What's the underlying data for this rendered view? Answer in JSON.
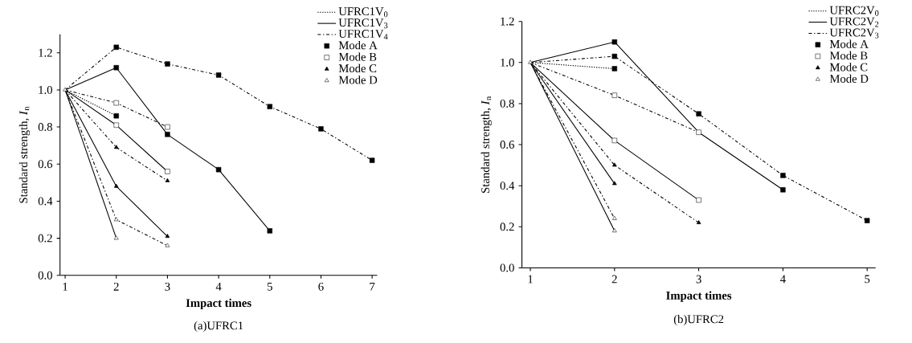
{
  "chart_data": [
    {
      "type": "line",
      "title": "(a)UFRC1",
      "xlabel": "Impact times",
      "ylabel": "Standard strength, *I*$_{n}$",
      "xlim": [
        0.9,
        7.1
      ],
      "ylim": [
        0,
        1.3
      ],
      "xticks": [
        1,
        2,
        3,
        4,
        5,
        6,
        7
      ],
      "yticks": [
        {
          "value": 0,
          "label": "0.0"
        },
        {
          "value": 0.2,
          "label": "0.2"
        },
        {
          "value": 0.4,
          "label": "0.4"
        },
        {
          "value": 0.6,
          "label": "0.6"
        },
        {
          "value": 0.8,
          "label": "0.8"
        },
        {
          "value": 1.0,
          "label": "1.0"
        },
        {
          "value": 1.2,
          "label": "1.2"
        }
      ],
      "legend": "top right",
      "grid": false,
      "series": [
        {
          "name": "UFRC1V$_{0}$",
          "color": "#000000",
          "line_style": "dotted",
          "x": [
            1,
            2
          ],
          "values": [
            1.0,
            0.86
          ]
        },
        {
          "name": "UFRC1V$_{3}$",
          "color": "#000000",
          "line_style": "solid",
          "x": [
            1,
            2,
            3,
            4,
            5
          ],
          "values": [
            1.0,
            1.12,
            0.76,
            0.57,
            0.24
          ]
        },
        {
          "name": "UFRC1V$_{4}$",
          "color": "#000000",
          "line_style": "dashed",
          "x": [
            1,
            2,
            3,
            4,
            5,
            6,
            7
          ],
          "values": [
            1.0,
            1.23,
            1.14,
            1.08,
            0.91,
            0.79,
            0.62
          ]
        },
        {
          "color": "#000000",
          "line_style": "dashed",
          "x": [
            1,
            2,
            3
          ],
          "values": [
            1.0,
            0.93,
            0.8
          ]
        },
        {
          "color": "#000000",
          "line_style": "solid",
          "x": [
            1,
            2,
            3
          ],
          "values": [
            1.0,
            0.81,
            0.56
          ]
        },
        {
          "color": "#000000",
          "line_style": "dashed",
          "x": [
            1,
            2,
            3
          ],
          "values": [
            1.0,
            0.69,
            0.51
          ]
        },
        {
          "color": "#000000",
          "line_style": "solid",
          "x": [
            1,
            2,
            3
          ],
          "values": [
            1.0,
            0.48,
            0.21
          ]
        },
        {
          "color": "#000000",
          "line_style": "dashed",
          "x": [
            1,
            2,
            3
          ],
          "values": [
            1.0,
            0.3,
            0.16
          ]
        },
        {
          "color": "#000000",
          "line_style": "solid",
          "x": [
            1,
            2
          ],
          "values": [
            1.0,
            0.2
          ]
        },
        {
          "type": "scatter",
          "name": "Mode A",
          "color": "#000000",
          "marker": "square",
          "x": [
            2,
            2,
            2,
            3,
            3,
            4,
            4,
            5,
            5,
            6,
            7
          ],
          "values": [
            1.23,
            1.12,
            0.86,
            1.14,
            0.76,
            1.08,
            0.57,
            0.91,
            0.24,
            0.79,
            0.62
          ]
        },
        {
          "type": "scatter",
          "name": "Mode B",
          "color": "#ffffff",
          "marker": "square",
          "x": [
            2,
            2,
            3,
            3
          ],
          "values": [
            0.93,
            0.81,
            0.8,
            0.56
          ]
        },
        {
          "type": "scatter",
          "name": "Mode C",
          "color": "#000000",
          "marker": "triangle",
          "x": [
            2,
            2,
            3,
            3
          ],
          "values": [
            0.69,
            0.48,
            0.51,
            0.21
          ]
        },
        {
          "type": "scatter",
          "name": "Mode D",
          "color": "#ffffff",
          "marker": "triangle",
          "x": [
            1,
            2,
            2,
            3
          ],
          "values": [
            1.0,
            0.3,
            0.2,
            0.16
          ]
        }
      ]
    },
    {
      "type": "line",
      "title": "(b)UFRC2",
      "xlabel": "Impact times",
      "ylabel": "Standard strength, *I*$_{n}$",
      "xlim": [
        0.9,
        5.1
      ],
      "ylim": [
        0,
        1.2
      ],
      "xticks": [
        1,
        2,
        3,
        4,
        5
      ],
      "yticks": [
        {
          "value": 0,
          "label": "0.0"
        },
        {
          "value": 0.2,
          "label": "0.2"
        },
        {
          "value": 0.4,
          "label": "0.4"
        },
        {
          "value": 0.6,
          "label": "0.6"
        },
        {
          "value": 0.8,
          "label": "0.8"
        },
        {
          "value": 1.0,
          "label": "1.0"
        },
        {
          "value": 1.2,
          "label": "1.2"
        }
      ],
      "legend": "top right",
      "grid": false,
      "series": [
        {
          "name": "UFRC2V$_{0}$",
          "color": "#000000",
          "line_style": "dotted",
          "x": [
            1,
            2
          ],
          "values": [
            1.0,
            0.97
          ]
        },
        {
          "name": "UFRC2V$_{2}$",
          "color": "#000000",
          "line_style": "solid",
          "x": [
            1,
            2,
            3,
            4
          ],
          "values": [
            1.0,
            1.1,
            0.66,
            0.38
          ]
        },
        {
          "name": "UFRC2V$_{3}$",
          "color": "#000000",
          "line_style": "dashed",
          "x": [
            1,
            2,
            3,
            4,
            5
          ],
          "values": [
            1.0,
            1.03,
            0.75,
            0.45,
            0.23
          ]
        },
        {
          "color": "#000000",
          "line_style": "dashed",
          "x": [
            1,
            2,
            3
          ],
          "values": [
            1.0,
            0.84,
            0.66
          ]
        },
        {
          "color": "#000000",
          "line_style": "solid",
          "x": [
            1,
            2,
            3
          ],
          "values": [
            1.0,
            0.62,
            0.33
          ]
        },
        {
          "color": "#000000",
          "line_style": "dashed",
          "x": [
            1,
            2,
            3
          ],
          "values": [
            1.0,
            0.5,
            0.22
          ]
        },
        {
          "color": "#000000",
          "line_style": "solid",
          "x": [
            1,
            2
          ],
          "values": [
            1.0,
            0.41
          ]
        },
        {
          "color": "#000000",
          "line_style": "dashed",
          "x": [
            1,
            2
          ],
          "values": [
            1.0,
            0.24
          ]
        },
        {
          "color": "#000000",
          "line_style": "solid",
          "x": [
            1,
            2
          ],
          "values": [
            1.0,
            0.18
          ]
        },
        {
          "type": "scatter",
          "name": "Mode A",
          "color": "#000000",
          "marker": "square",
          "x": [
            2,
            2,
            2,
            3,
            4,
            4,
            5
          ],
          "values": [
            1.1,
            1.03,
            0.97,
            0.75,
            0.45,
            0.38,
            0.23
          ]
        },
        {
          "type": "scatter",
          "name": "Mode B",
          "color": "#ffffff",
          "marker": "square",
          "x": [
            2,
            2,
            3,
            3
          ],
          "values": [
            0.84,
            0.62,
            0.66,
            0.33
          ]
        },
        {
          "type": "scatter",
          "name": "Mode C",
          "color": "#000000",
          "marker": "triangle",
          "x": [
            2,
            2,
            3
          ],
          "values": [
            0.5,
            0.41,
            0.22
          ]
        },
        {
          "type": "scatter",
          "name": "Mode D",
          "color": "#ffffff",
          "marker": "triangle",
          "x": [
            1,
            2,
            2
          ],
          "values": [
            1.0,
            0.24,
            0.18
          ]
        }
      ]
    }
  ]
}
